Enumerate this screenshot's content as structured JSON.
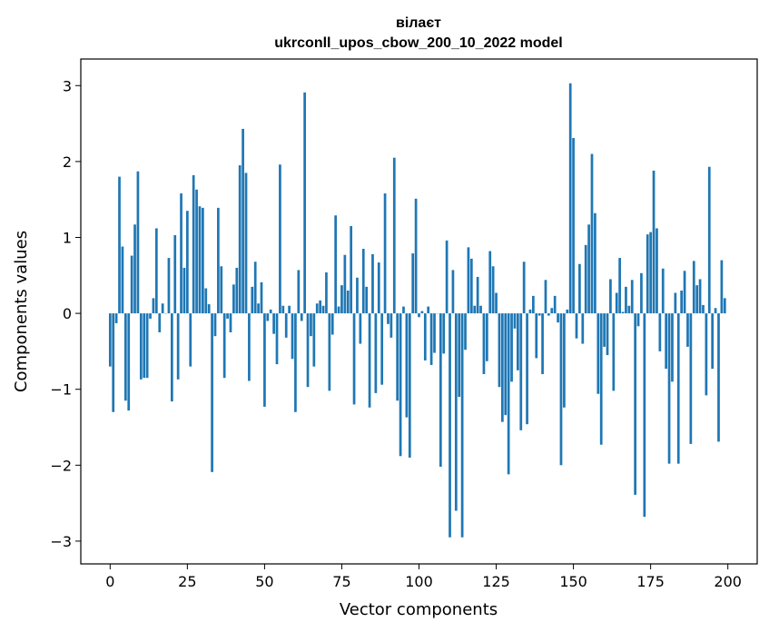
{
  "chart_data": {
    "type": "bar",
    "title": "вілаєт",
    "subtitle": "ukrconll_upos_cbow_200_10_2022 model",
    "xlabel": "Vector components",
    "ylabel": "Components values",
    "xlim": [
      -9.5,
      209.5
    ],
    "ylim": [
      -3.3,
      3.35
    ],
    "xticks": [
      0,
      25,
      50,
      75,
      100,
      125,
      150,
      175,
      200
    ],
    "xtick_labels": [
      "0",
      "25",
      "50",
      "75",
      "100",
      "125",
      "150",
      "175",
      "200"
    ],
    "yticks": [
      -3,
      -2,
      -1,
      0,
      1,
      2,
      3
    ],
    "ytick_labels": [
      "−3",
      "−2",
      "−1",
      "0",
      "1",
      "2",
      "3"
    ],
    "grid": false,
    "bar_color": "#1f77b4",
    "x": [
      0,
      1,
      2,
      3,
      4,
      5,
      6,
      7,
      8,
      9,
      10,
      11,
      12,
      13,
      14,
      15,
      16,
      17,
      18,
      19,
      20,
      21,
      22,
      23,
      24,
      25,
      26,
      27,
      28,
      29,
      30,
      31,
      32,
      33,
      34,
      35,
      36,
      37,
      38,
      39,
      40,
      41,
      42,
      43,
      44,
      45,
      46,
      47,
      48,
      49,
      50,
      51,
      52,
      53,
      54,
      55,
      56,
      57,
      58,
      59,
      60,
      61,
      62,
      63,
      64,
      65,
      66,
      67,
      68,
      69,
      70,
      71,
      72,
      73,
      74,
      75,
      76,
      77,
      78,
      79,
      80,
      81,
      82,
      83,
      84,
      85,
      86,
      87,
      88,
      89,
      90,
      91,
      92,
      93,
      94,
      95,
      96,
      97,
      98,
      99,
      100,
      101,
      102,
      103,
      104,
      105,
      106,
      107,
      108,
      109,
      110,
      111,
      112,
      113,
      114,
      115,
      116,
      117,
      118,
      119,
      120,
      121,
      122,
      123,
      124,
      125,
      126,
      127,
      128,
      129,
      130,
      131,
      132,
      133,
      134,
      135,
      136,
      137,
      138,
      139,
      140,
      141,
      142,
      143,
      144,
      145,
      146,
      147,
      148,
      149,
      150,
      151,
      152,
      153,
      154,
      155,
      156,
      157,
      158,
      159,
      160,
      161,
      162,
      163,
      164,
      165,
      166,
      167,
      168,
      169,
      170,
      171,
      172,
      173,
      174,
      175,
      176,
      177,
      178,
      179,
      180,
      181,
      182,
      183,
      184,
      185,
      186,
      187,
      188,
      189,
      190,
      191,
      192,
      193,
      194,
      195,
      196,
      197,
      198,
      199
    ],
    "values": [
      -0.7,
      -1.3,
      -0.13,
      1.8,
      0.88,
      -1.15,
      -1.28,
      0.76,
      1.17,
      1.87,
      -0.87,
      -0.85,
      -0.85,
      -0.07,
      0.2,
      1.12,
      -0.25,
      0.13,
      0.0,
      0.73,
      -1.16,
      1.03,
      -0.87,
      1.58,
      0.6,
      1.35,
      -0.7,
      1.82,
      1.63,
      1.41,
      1.39,
      0.33,
      0.12,
      -2.09,
      -0.3,
      1.39,
      0.62,
      -0.85,
      -0.07,
      -0.25,
      0.38,
      0.6,
      1.95,
      2.43,
      1.85,
      -0.89,
      0.35,
      0.68,
      0.13,
      0.41,
      -1.23,
      -0.1,
      0.05,
      -0.27,
      -0.67,
      1.96,
      0.1,
      -0.32,
      0.1,
      -0.6,
      -1.3,
      0.57,
      -0.1,
      2.91,
      -0.97,
      -0.3,
      -0.7,
      0.13,
      0.17,
      0.1,
      0.54,
      -1.02,
      -0.28,
      1.29,
      0.09,
      0.37,
      0.77,
      0.3,
      1.15,
      -1.2,
      0.47,
      -0.4,
      0.85,
      0.35,
      -1.24,
      0.78,
      -1.05,
      0.67,
      -0.94,
      1.58,
      -0.14,
      -0.32,
      2.05,
      -1.15,
      -1.88,
      0.09,
      -1.37,
      -1.9,
      0.79,
      1.51,
      -0.05,
      0.03,
      -0.62,
      0.09,
      -0.68,
      -0.52,
      0.0,
      -2.02,
      -0.53,
      0.96,
      -2.95,
      0.57,
      -2.6,
      -1.1,
      -2.95,
      -0.48,
      0.87,
      0.72,
      0.1,
      0.48,
      0.1,
      -0.8,
      -0.63,
      0.82,
      0.62,
      0.27,
      -0.97,
      -1.43,
      -1.34,
      -2.12,
      -0.9,
      -0.2,
      -0.75,
      -1.54,
      0.68,
      -1.46,
      0.05,
      0.23,
      -0.59,
      -0.03,
      -0.8,
      0.44,
      -0.03,
      0.07,
      0.23,
      -0.12,
      -2.0,
      -1.24,
      0.05,
      3.03,
      2.31,
      -0.33,
      0.65,
      -0.4,
      0.9,
      1.17,
      2.1,
      1.32,
      -1.06,
      -1.73,
      -0.44,
      -0.55,
      0.45,
      -1.02,
      0.27,
      0.73,
      0.02,
      0.35,
      0.1,
      0.44,
      -2.39,
      -0.17,
      0.53,
      -2.68,
      1.04,
      1.07,
      1.88,
      1.12,
      -0.5,
      0.59,
      -0.73,
      -1.98,
      -0.9,
      0.27,
      -1.98,
      0.3,
      0.56,
      -0.44,
      -1.72,
      0.69,
      0.37,
      0.45,
      0.11,
      -1.08,
      1.93,
      -0.73,
      0.07,
      -1.69,
      0.7,
      0.2
    ]
  }
}
